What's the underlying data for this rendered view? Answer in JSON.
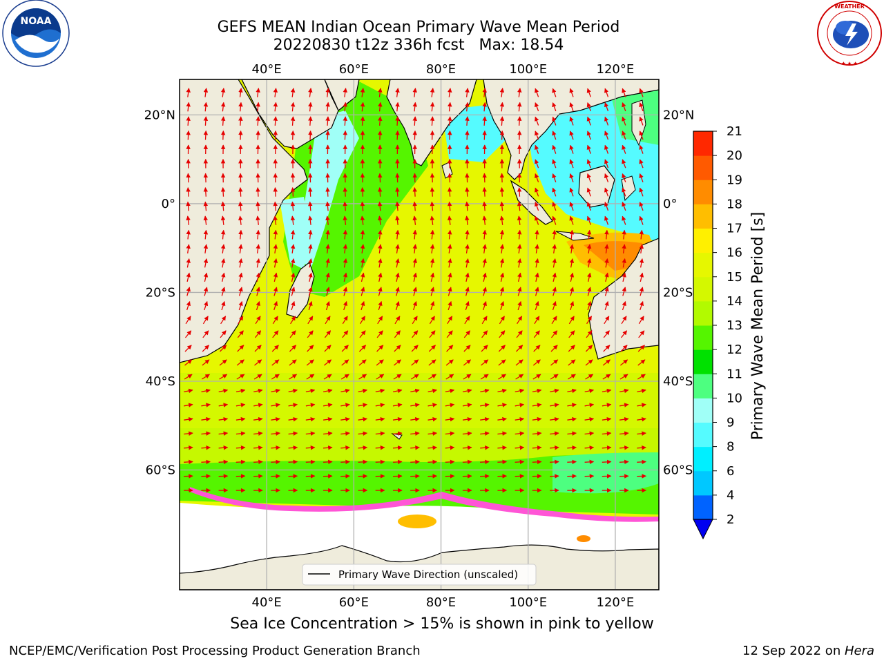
{
  "header": {
    "title_line1": "GEFS MEAN Indian Ocean Primary Wave Mean Period",
    "title_line2": "20220830 t12z 336h fcst   Max: 18.54"
  },
  "logos": {
    "left": {
      "name": "noaa-logo",
      "text": "NOAA",
      "ring_text": "NATIONAL OCEANIC AND ATMOSPHERIC ADMINISTRATION · U.S. DEPARTMENT OF COMMERCE"
    },
    "right": {
      "name": "nws-logo",
      "ring_text": "NATIONAL WEATHER SERVICE"
    }
  },
  "map": {
    "lon_range": [
      20,
      130
    ],
    "lat_range": [
      -87,
      28
    ],
    "lon_ticks": [
      "40°E",
      "60°E",
      "80°E",
      "100°E",
      "120°E"
    ],
    "lat_ticks": [
      "20°N",
      "0°",
      "20°S",
      "40°S",
      "60°S"
    ],
    "colors": {
      "land": "#efecdc",
      "ocean_base": "#e6f700",
      "arrow": "#e60000",
      "grid": "#b0b0b0"
    },
    "legend_label": "Primary Wave Direction (unscaled)"
  },
  "colorbar": {
    "label": "Primary Wave Mean Period [s]",
    "ticks": [
      "2",
      "4",
      "6",
      "8",
      "9",
      "10",
      "11",
      "12",
      "13",
      "14",
      "15",
      "16",
      "17",
      "18",
      "19",
      "20",
      "21"
    ],
    "colors": [
      "#0063ff",
      "#00c8ff",
      "#00efff",
      "#55fbff",
      "#a0fff7",
      "#4dff80",
      "#00e100",
      "#55f500",
      "#b2fa00",
      "#d4f800",
      "#e6f700",
      "#fff000",
      "#ffbe00",
      "#ff8c00",
      "#ff5a00",
      "#ff2800"
    ],
    "under_color": "#0000f0"
  },
  "caption": "Sea Ice Concentration > 15% is shown in pink to yellow",
  "footer": {
    "left": "NCEP/EMC/Verification Post Processing Product Generation Branch",
    "right_date": "12 Sep 2022 on ",
    "right_machine": "Hera"
  }
}
